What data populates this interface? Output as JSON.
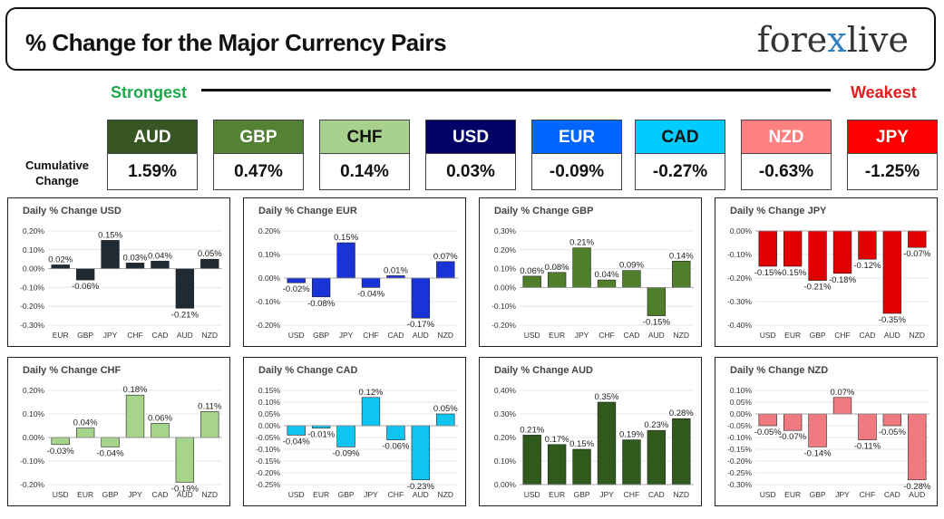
{
  "header": {
    "title": "% Change for the Major Currency Pairs",
    "logo_left": "fore",
    "logo_x": "x",
    "logo_right": "live"
  },
  "scale": {
    "strongest": "Strongest",
    "weakest": "Weakest"
  },
  "cumulative": {
    "label_line1": "Cumulative",
    "label_line2": "Change",
    "currencies": [
      {
        "code": "AUD",
        "value": "1.59%",
        "color": "#375623",
        "text": "#ffffff"
      },
      {
        "code": "GBP",
        "value": "0.47%",
        "color": "#548235",
        "text": "#ffffff"
      },
      {
        "code": "CHF",
        "value": "0.14%",
        "color": "#a9d18e",
        "text": "#111111"
      },
      {
        "code": "USD",
        "value": "0.03%",
        "color": "#000066",
        "text": "#ffffff"
      },
      {
        "code": "EUR",
        "value": "-0.09%",
        "color": "#0066ff",
        "text": "#ffffff"
      },
      {
        "code": "CAD",
        "value": "-0.27%",
        "color": "#00ccff",
        "text": "#111111"
      },
      {
        "code": "NZD",
        "value": "-0.63%",
        "color": "#ff8080",
        "text": "#ffffff"
      },
      {
        "code": "JPY",
        "value": "-1.25%",
        "color": "#ff0000",
        "text": "#ffffff"
      }
    ]
  },
  "chart_data": [
    {
      "type": "bar",
      "title": "Daily % Change USD",
      "categories": [
        "EUR",
        "GBP",
        "JPY",
        "CHF",
        "CAD",
        "AUD",
        "NZD"
      ],
      "values": [
        0.02,
        -0.06,
        0.15,
        0.03,
        0.04,
        -0.21,
        0.05
      ],
      "labels": [
        "0.02%",
        "-0.06%",
        "0.15%",
        "0.03%",
        "0.04%",
        "-0.21%",
        "0.05%"
      ],
      "ylim": [
        -0.3,
        0.2
      ],
      "yticks": [
        0.2,
        0.1,
        0.0,
        -0.1,
        -0.2,
        -0.3
      ],
      "ytick_labels": [
        "0.20%",
        "0.10%",
        "0.00%",
        "-0.10%",
        "-0.20%",
        "-0.30%"
      ],
      "color": "#1f2a33"
    },
    {
      "type": "bar",
      "title": "Daily % Change EUR",
      "categories": [
        "USD",
        "GBP",
        "JPY",
        "CHF",
        "CAD",
        "AUD",
        "NZD"
      ],
      "values": [
        -0.02,
        -0.08,
        0.15,
        -0.04,
        0.01,
        -0.17,
        0.07
      ],
      "labels": [
        "-0.02%",
        "-0.08%",
        "0.15%",
        "-0.04%",
        "0.01%",
        "-0.17%",
        "0.07%"
      ],
      "ylim": [
        -0.2,
        0.2
      ],
      "yticks": [
        0.2,
        0.1,
        0.0,
        -0.1,
        -0.2
      ],
      "ytick_labels": [
        "0.20%",
        "0.10%",
        "0.00%",
        "-0.10%",
        "-0.20%"
      ],
      "color": "#1a33d6"
    },
    {
      "type": "bar",
      "title": "Daily % Change GBP",
      "categories": [
        "USD",
        "EUR",
        "JPY",
        "CHF",
        "CAD",
        "AUD",
        "NZD"
      ],
      "values": [
        0.06,
        0.08,
        0.21,
        0.04,
        0.09,
        -0.15,
        0.14
      ],
      "labels": [
        "0.06%",
        "0.08%",
        "0.21%",
        "0.04%",
        "0.09%",
        "-0.15%",
        "0.14%"
      ],
      "ylim": [
        -0.2,
        0.3
      ],
      "yticks": [
        0.3,
        0.2,
        0.1,
        0.0,
        -0.1,
        -0.2
      ],
      "ytick_labels": [
        "0.30%",
        "0.20%",
        "0.10%",
        "0.00%",
        "-0.10%",
        "-0.20%"
      ],
      "color": "#4f7f2a"
    },
    {
      "type": "bar",
      "title": "Daily % Change JPY",
      "categories": [
        "USD",
        "EUR",
        "GBP",
        "CHF",
        "CAD",
        "AUD",
        "NZD"
      ],
      "values": [
        -0.15,
        -0.15,
        -0.21,
        -0.18,
        -0.12,
        -0.35,
        -0.07
      ],
      "labels": [
        "-0.15%",
        "-0.15%",
        "-0.21%",
        "-0.18%",
        "-0.12%",
        "-0.35%",
        "-0.07%"
      ],
      "ylim": [
        -0.4,
        0.0
      ],
      "yticks": [
        0.0,
        -0.1,
        -0.2,
        -0.3,
        -0.4
      ],
      "ytick_labels": [
        "0.00%",
        "-0.10%",
        "-0.20%",
        "-0.30%",
        "-0.40%"
      ],
      "color": "#e00000"
    },
    {
      "type": "bar",
      "title": "Daily % Change CHF",
      "categories": [
        "USD",
        "EUR",
        "GBP",
        "JPY",
        "CAD",
        "AUD",
        "NZD"
      ],
      "values": [
        -0.03,
        0.04,
        -0.04,
        0.18,
        0.06,
        -0.19,
        0.11
      ],
      "labels": [
        "-0.03%",
        "0.04%",
        "-0.04%",
        "0.18%",
        "0.06%",
        "-0.19%",
        "0.11%"
      ],
      "ylim": [
        -0.2,
        0.2
      ],
      "yticks": [
        0.2,
        0.1,
        0.0,
        -0.1,
        -0.2
      ],
      "ytick_labels": [
        "0.20%",
        "0.10%",
        "0.00%",
        "-0.10%",
        "-0.20%"
      ],
      "color": "#a6d48a"
    },
    {
      "type": "bar",
      "title": "Daily % Change CAD",
      "categories": [
        "USD",
        "EUR",
        "GBP",
        "JPY",
        "CHF",
        "AUD",
        "NZD"
      ],
      "values": [
        -0.04,
        -0.01,
        -0.09,
        0.12,
        -0.06,
        -0.23,
        0.05
      ],
      "labels": [
        "-0.04%",
        "-0.01%",
        "-0.09%",
        "0.12%",
        "-0.06%",
        "-0.23%",
        "0.05%"
      ],
      "ylim": [
        -0.25,
        0.15
      ],
      "yticks": [
        0.15,
        0.1,
        0.05,
        0.0,
        -0.05,
        -0.1,
        -0.15,
        -0.2,
        -0.25
      ],
      "ytick_labels": [
        "0.15%",
        "0.10%",
        "0.05%",
        "0.00%",
        "-0.05%",
        "-0.10%",
        "-0.15%",
        "-0.20%",
        "-0.25%"
      ],
      "color": "#10c4f0"
    },
    {
      "type": "bar",
      "title": "Daily % Change AUD",
      "categories": [
        "USD",
        "EUR",
        "GBP",
        "JPY",
        "CHF",
        "CAD",
        "NZD"
      ],
      "values": [
        0.21,
        0.17,
        0.15,
        0.35,
        0.19,
        0.23,
        0.28
      ],
      "labels": [
        "0.21%",
        "0.17%",
        "0.15%",
        "0.35%",
        "0.19%",
        "0.23%",
        "0.28%"
      ],
      "ylim": [
        0.0,
        0.4
      ],
      "yticks": [
        0.4,
        0.3,
        0.2,
        0.1,
        0.0
      ],
      "ytick_labels": [
        "0.40%",
        "0.30%",
        "0.20%",
        "0.10%",
        "0.00%"
      ],
      "color": "#2f5a1c"
    },
    {
      "type": "bar",
      "title": "Daily % Change NZD",
      "categories": [
        "USD",
        "EUR",
        "GBP",
        "JPY",
        "CHF",
        "CAD",
        "AUD"
      ],
      "values": [
        -0.05,
        -0.07,
        -0.14,
        0.07,
        -0.11,
        -0.05,
        -0.28
      ],
      "labels": [
        "-0.05%",
        "-0.07%",
        "-0.14%",
        "0.07%",
        "-0.11%",
        "-0.05%",
        "-0.28%"
      ],
      "ylim": [
        -0.3,
        0.1
      ],
      "yticks": [
        0.1,
        0.05,
        0.0,
        -0.05,
        -0.1,
        -0.15,
        -0.2,
        -0.25,
        -0.3
      ],
      "ytick_labels": [
        "0.10%",
        "0.05%",
        "0.00%",
        "-0.05%",
        "-0.10%",
        "-0.15%",
        "-0.20%",
        "-0.25%",
        "-0.30%"
      ],
      "color": "#f07a80"
    }
  ]
}
